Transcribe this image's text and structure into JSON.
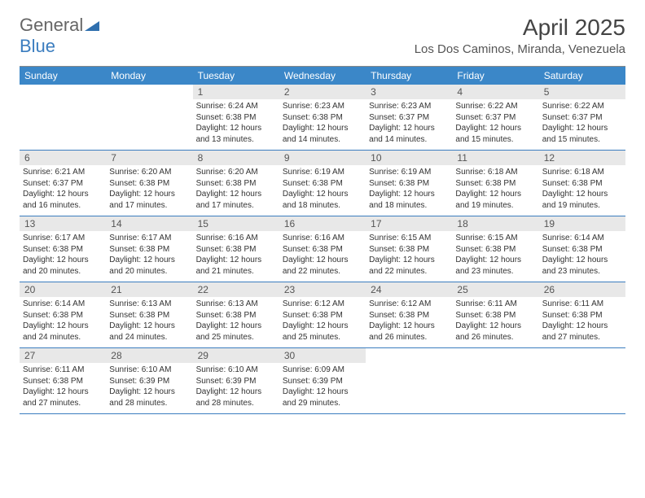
{
  "brand": {
    "part1": "General",
    "part2": "Blue"
  },
  "title": {
    "month": "April 2025",
    "location": "Los Dos Caminos, Miranda, Venezuela"
  },
  "colors": {
    "header_bg": "#3b87c8",
    "rule": "#3b7dbf",
    "shade": "#e8e8e8",
    "text": "#333333",
    "muted": "#555555"
  },
  "day_names": [
    "Sunday",
    "Monday",
    "Tuesday",
    "Wednesday",
    "Thursday",
    "Friday",
    "Saturday"
  ],
  "weeks": [
    [
      null,
      null,
      {
        "n": "1",
        "sr": "6:24 AM",
        "ss": "6:38 PM",
        "dl": "12 hours and 13 minutes."
      },
      {
        "n": "2",
        "sr": "6:23 AM",
        "ss": "6:38 PM",
        "dl": "12 hours and 14 minutes."
      },
      {
        "n": "3",
        "sr": "6:23 AM",
        "ss": "6:37 PM",
        "dl": "12 hours and 14 minutes."
      },
      {
        "n": "4",
        "sr": "6:22 AM",
        "ss": "6:37 PM",
        "dl": "12 hours and 15 minutes."
      },
      {
        "n": "5",
        "sr": "6:22 AM",
        "ss": "6:37 PM",
        "dl": "12 hours and 15 minutes."
      }
    ],
    [
      {
        "n": "6",
        "sr": "6:21 AM",
        "ss": "6:37 PM",
        "dl": "12 hours and 16 minutes."
      },
      {
        "n": "7",
        "sr": "6:20 AM",
        "ss": "6:38 PM",
        "dl": "12 hours and 17 minutes."
      },
      {
        "n": "8",
        "sr": "6:20 AM",
        "ss": "6:38 PM",
        "dl": "12 hours and 17 minutes."
      },
      {
        "n": "9",
        "sr": "6:19 AM",
        "ss": "6:38 PM",
        "dl": "12 hours and 18 minutes."
      },
      {
        "n": "10",
        "sr": "6:19 AM",
        "ss": "6:38 PM",
        "dl": "12 hours and 18 minutes."
      },
      {
        "n": "11",
        "sr": "6:18 AM",
        "ss": "6:38 PM",
        "dl": "12 hours and 19 minutes."
      },
      {
        "n": "12",
        "sr": "6:18 AM",
        "ss": "6:38 PM",
        "dl": "12 hours and 19 minutes."
      }
    ],
    [
      {
        "n": "13",
        "sr": "6:17 AM",
        "ss": "6:38 PM",
        "dl": "12 hours and 20 minutes."
      },
      {
        "n": "14",
        "sr": "6:17 AM",
        "ss": "6:38 PM",
        "dl": "12 hours and 20 minutes."
      },
      {
        "n": "15",
        "sr": "6:16 AM",
        "ss": "6:38 PM",
        "dl": "12 hours and 21 minutes."
      },
      {
        "n": "16",
        "sr": "6:16 AM",
        "ss": "6:38 PM",
        "dl": "12 hours and 22 minutes."
      },
      {
        "n": "17",
        "sr": "6:15 AM",
        "ss": "6:38 PM",
        "dl": "12 hours and 22 minutes."
      },
      {
        "n": "18",
        "sr": "6:15 AM",
        "ss": "6:38 PM",
        "dl": "12 hours and 23 minutes."
      },
      {
        "n": "19",
        "sr": "6:14 AM",
        "ss": "6:38 PM",
        "dl": "12 hours and 23 minutes."
      }
    ],
    [
      {
        "n": "20",
        "sr": "6:14 AM",
        "ss": "6:38 PM",
        "dl": "12 hours and 24 minutes."
      },
      {
        "n": "21",
        "sr": "6:13 AM",
        "ss": "6:38 PM",
        "dl": "12 hours and 24 minutes."
      },
      {
        "n": "22",
        "sr": "6:13 AM",
        "ss": "6:38 PM",
        "dl": "12 hours and 25 minutes."
      },
      {
        "n": "23",
        "sr": "6:12 AM",
        "ss": "6:38 PM",
        "dl": "12 hours and 25 minutes."
      },
      {
        "n": "24",
        "sr": "6:12 AM",
        "ss": "6:38 PM",
        "dl": "12 hours and 26 minutes."
      },
      {
        "n": "25",
        "sr": "6:11 AM",
        "ss": "6:38 PM",
        "dl": "12 hours and 26 minutes."
      },
      {
        "n": "26",
        "sr": "6:11 AM",
        "ss": "6:38 PM",
        "dl": "12 hours and 27 minutes."
      }
    ],
    [
      {
        "n": "27",
        "sr": "6:11 AM",
        "ss": "6:38 PM",
        "dl": "12 hours and 27 minutes."
      },
      {
        "n": "28",
        "sr": "6:10 AM",
        "ss": "6:39 PM",
        "dl": "12 hours and 28 minutes."
      },
      {
        "n": "29",
        "sr": "6:10 AM",
        "ss": "6:39 PM",
        "dl": "12 hours and 28 minutes."
      },
      {
        "n": "30",
        "sr": "6:09 AM",
        "ss": "6:39 PM",
        "dl": "12 hours and 29 minutes."
      },
      null,
      null,
      null
    ]
  ],
  "labels": {
    "sunrise": "Sunrise:",
    "sunset": "Sunset:",
    "daylight": "Daylight:"
  }
}
